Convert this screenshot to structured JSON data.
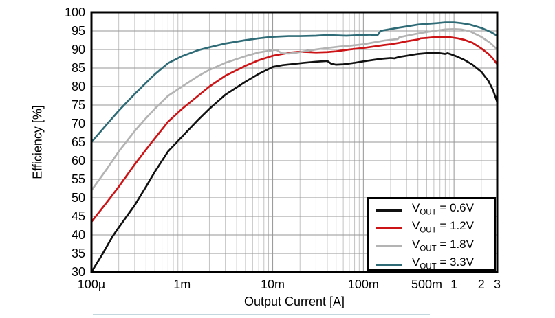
{
  "chart": {
    "xlabel": "Output Current [A]",
    "ylabel": "Efficiency [%]",
    "x_ticks": [
      {
        "label": "100µ",
        "value": 0.0001
      },
      {
        "label": "1m",
        "value": 0.001
      },
      {
        "label": "10m",
        "value": 0.01
      },
      {
        "label": "100m",
        "value": 0.1
      },
      {
        "label": "500m",
        "value": 0.5
      },
      {
        "label": "1",
        "value": 1
      },
      {
        "label": "2",
        "value": 2
      },
      {
        "label": "3",
        "value": 3
      }
    ],
    "y_ticks": [
      100,
      95,
      90,
      85,
      80,
      75,
      70,
      65,
      60,
      55,
      50,
      45,
      40,
      35,
      30
    ],
    "colors": {
      "border": "#000000",
      "grid_major": "#969696",
      "grid_minor": "#c3c3c3",
      "footer_line": "#c2d7de"
    },
    "legend": {
      "items": [
        {
          "prefix": "V",
          "sub": "OUT",
          "rest": " = 0.6V",
          "color": "#111111"
        },
        {
          "prefix": "V",
          "sub": "OUT",
          "rest": " = 1.2V",
          "color": "#cc1417"
        },
        {
          "prefix": "V",
          "sub": "OUT",
          "rest": " = 1.8V",
          "color": "#b3b3b3"
        },
        {
          "prefix": "V",
          "sub": "OUT",
          "rest": " = 3.3V",
          "color": "#2e6b76"
        }
      ]
    }
  },
  "chart_data": {
    "type": "line",
    "x_scale": "log",
    "xlim": [
      0.0001,
      3
    ],
    "ylim": [
      30,
      100
    ],
    "xlabel": "Output Current [A]",
    "ylabel": "Efficiency [%]",
    "grid": "on",
    "legend_position": "lower right",
    "series": [
      {
        "name": "VOUT = 0.6V",
        "color": "#111111",
        "points": [
          [
            0.0001,
            30
          ],
          [
            0.00013,
            34.5
          ],
          [
            0.00017,
            39.5
          ],
          [
            0.0002,
            42
          ],
          [
            0.0003,
            48
          ],
          [
            0.0004,
            53
          ],
          [
            0.0005,
            57
          ],
          [
            0.0007,
            62.5
          ],
          [
            0.001,
            66.5
          ],
          [
            0.0015,
            71
          ],
          [
            0.002,
            74
          ],
          [
            0.003,
            77.8
          ],
          [
            0.005,
            81.3
          ],
          [
            0.007,
            83.4
          ],
          [
            0.01,
            85.3
          ],
          [
            0.013,
            85.8
          ],
          [
            0.017,
            86.1
          ],
          [
            0.022,
            86.4
          ],
          [
            0.03,
            86.7
          ],
          [
            0.04,
            86.9
          ],
          [
            0.044,
            86.2
          ],
          [
            0.05,
            85.9
          ],
          [
            0.06,
            86.0
          ],
          [
            0.08,
            86.4
          ],
          [
            0.1,
            86.8
          ],
          [
            0.13,
            87.2
          ],
          [
            0.16,
            87.5
          ],
          [
            0.2,
            87.7
          ],
          [
            0.22,
            87.6
          ],
          [
            0.25,
            88.0
          ],
          [
            0.3,
            88.3
          ],
          [
            0.4,
            88.8
          ],
          [
            0.5,
            89.0
          ],
          [
            0.6,
            89.1
          ],
          [
            0.7,
            89.0
          ],
          [
            0.8,
            88.8
          ],
          [
            0.85,
            89.0
          ],
          [
            0.95,
            88.6
          ],
          [
            1.1,
            88.0
          ],
          [
            1.3,
            87.2
          ],
          [
            1.6,
            85.9
          ],
          [
            2.0,
            84.0
          ],
          [
            2.4,
            81.5
          ],
          [
            2.7,
            79.0
          ],
          [
            3.0,
            75.8
          ]
        ]
      },
      {
        "name": "VOUT = 1.2V",
        "color": "#cc1417",
        "points": [
          [
            0.0001,
            43.5
          ],
          [
            0.00015,
            49
          ],
          [
            0.0002,
            53
          ],
          [
            0.0003,
            59
          ],
          [
            0.0004,
            63
          ],
          [
            0.0005,
            66
          ],
          [
            0.0007,
            70.5
          ],
          [
            0.001,
            74
          ],
          [
            0.0015,
            77.5
          ],
          [
            0.002,
            80
          ],
          [
            0.003,
            82.9
          ],
          [
            0.005,
            85.6
          ],
          [
            0.007,
            87.1
          ],
          [
            0.01,
            88.3
          ],
          [
            0.013,
            88.8
          ],
          [
            0.016,
            89.2
          ],
          [
            0.02,
            89.4
          ],
          [
            0.025,
            89.3
          ],
          [
            0.03,
            89.2
          ],
          [
            0.04,
            89.3
          ],
          [
            0.05,
            89.5
          ],
          [
            0.07,
            90.0
          ],
          [
            0.1,
            90.4
          ],
          [
            0.13,
            90.8
          ],
          [
            0.17,
            91.2
          ],
          [
            0.2,
            91.4
          ],
          [
            0.25,
            91.8
          ],
          [
            0.3,
            92.2
          ],
          [
            0.4,
            92.7
          ],
          [
            0.43,
            93.0
          ],
          [
            0.5,
            93.1
          ],
          [
            0.6,
            93.3
          ],
          [
            0.75,
            93.4
          ],
          [
            0.9,
            93.3
          ],
          [
            1.1,
            93.0
          ],
          [
            1.3,
            92.6
          ],
          [
            1.6,
            91.8
          ],
          [
            2.0,
            90.3
          ],
          [
            2.4,
            88.8
          ],
          [
            2.7,
            87.5
          ],
          [
            3.0,
            86.0
          ]
        ]
      },
      {
        "name": "VOUT = 1.8V",
        "color": "#b3b3b3",
        "points": [
          [
            0.0001,
            52
          ],
          [
            0.00015,
            58
          ],
          [
            0.0002,
            62.5
          ],
          [
            0.0003,
            68
          ],
          [
            0.0004,
            71.5
          ],
          [
            0.0005,
            74
          ],
          [
            0.0007,
            77.5
          ],
          [
            0.001,
            80
          ],
          [
            0.0015,
            82.8
          ],
          [
            0.002,
            84.5
          ],
          [
            0.003,
            86.4
          ],
          [
            0.005,
            88.2
          ],
          [
            0.007,
            89.2
          ],
          [
            0.01,
            89.8
          ],
          [
            0.011,
            89.9
          ],
          [
            0.0125,
            89.0
          ],
          [
            0.015,
            88.9
          ],
          [
            0.018,
            89.1
          ],
          [
            0.022,
            89.5
          ],
          [
            0.03,
            90.0
          ],
          [
            0.04,
            90.4
          ],
          [
            0.055,
            90.8
          ],
          [
            0.07,
            91.0
          ],
          [
            0.1,
            91.4
          ],
          [
            0.13,
            91.9
          ],
          [
            0.17,
            92.4
          ],
          [
            0.2,
            92.6
          ],
          [
            0.24,
            92.8
          ],
          [
            0.25,
            93.3
          ],
          [
            0.3,
            93.7
          ],
          [
            0.4,
            94.3
          ],
          [
            0.5,
            94.7
          ],
          [
            0.65,
            95.1
          ],
          [
            0.8,
            95.4
          ],
          [
            1.0,
            95.5
          ],
          [
            1.2,
            95.4
          ],
          [
            1.5,
            94.9
          ],
          [
            2.0,
            93.4
          ],
          [
            2.5,
            91.8
          ],
          [
            3.0,
            90.0
          ]
        ]
      },
      {
        "name": "VOUT = 3.3V",
        "color": "#2e6b76",
        "points": [
          [
            0.0001,
            65
          ],
          [
            0.00015,
            70
          ],
          [
            0.0002,
            73.5
          ],
          [
            0.0003,
            78
          ],
          [
            0.0004,
            81
          ],
          [
            0.0005,
            83.3
          ],
          [
            0.0007,
            86.3
          ],
          [
            0.001,
            88.2
          ],
          [
            0.0015,
            89.8
          ],
          [
            0.002,
            90.6
          ],
          [
            0.003,
            91.6
          ],
          [
            0.005,
            92.5
          ],
          [
            0.007,
            93.0
          ],
          [
            0.01,
            93.4
          ],
          [
            0.015,
            93.6
          ],
          [
            0.02,
            93.6
          ],
          [
            0.03,
            93.7
          ],
          [
            0.04,
            93.9
          ],
          [
            0.05,
            93.8
          ],
          [
            0.065,
            93.7
          ],
          [
            0.08,
            93.8
          ],
          [
            0.1,
            93.9
          ],
          [
            0.12,
            94.0
          ],
          [
            0.135,
            93.8
          ],
          [
            0.145,
            94.0
          ],
          [
            0.155,
            95.0
          ],
          [
            0.17,
            95.2
          ],
          [
            0.2,
            95.5
          ],
          [
            0.25,
            95.9
          ],
          [
            0.3,
            96.2
          ],
          [
            0.4,
            96.7
          ],
          [
            0.5,
            96.9
          ],
          [
            0.65,
            97.1
          ],
          [
            0.8,
            97.3
          ],
          [
            1.0,
            97.3
          ],
          [
            1.2,
            97.1
          ],
          [
            1.5,
            96.7
          ],
          [
            2.0,
            95.8
          ],
          [
            2.5,
            94.8
          ],
          [
            3.0,
            93.7
          ]
        ]
      }
    ]
  }
}
